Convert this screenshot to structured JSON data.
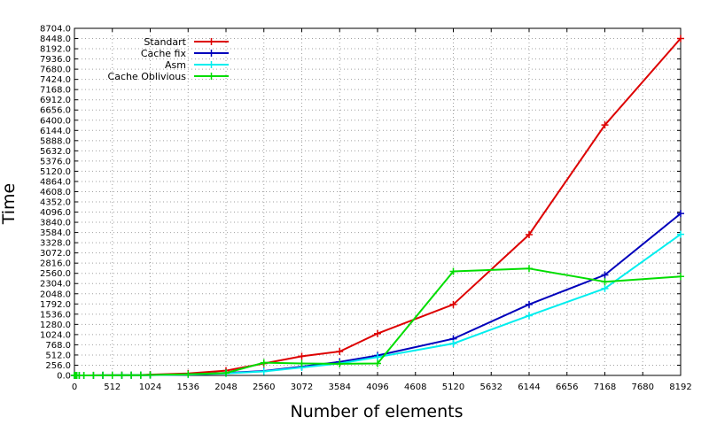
{
  "chart_data": {
    "type": "line",
    "title": "",
    "xlabel": "Number of elements",
    "ylabel": "Time",
    "xlim": [
      0,
      8192
    ],
    "ylim": [
      0,
      8704
    ],
    "grid": true,
    "legend_position": "top-left",
    "xticks": [
      0,
      512,
      1024,
      1536,
      2048,
      2560,
      3072,
      3584,
      4096,
      4608,
      5120,
      5632,
      6144,
      6656,
      7168,
      7680,
      8192
    ],
    "xtick_labels": [
      "0",
      "512",
      "1024",
      "1536",
      "2048",
      "2560",
      "3072",
      "3584",
      "4096",
      "4608",
      "5120",
      "5632",
      "6144",
      "6656",
      "7168",
      "7680",
      "8192"
    ],
    "yticks": [
      0,
      256,
      512,
      768,
      1024,
      1280,
      1536,
      1792,
      2048,
      2304,
      2560,
      2816,
      3072,
      3328,
      3584,
      3840,
      4096,
      4352,
      4608,
      4864,
      5120,
      5376,
      5632,
      5888,
      6144,
      6400,
      6656,
      6912,
      7168,
      7424,
      7680,
      7936,
      8192,
      8448,
      8704
    ],
    "ytick_labels": [
      "0.0",
      "256.0",
      "512.0",
      "768.0",
      "1024.0",
      "1280.0",
      "1536.0",
      "1792.0",
      "2048.0",
      "2304.0",
      "2560.0",
      "2816.0",
      "3072.0",
      "3328.0",
      "3584.0",
      "3840.0",
      "4096.0",
      "4352.0",
      "4608.0",
      "4864.0",
      "5120.0",
      "5376.0",
      "5632.0",
      "5888.0",
      "6144.0",
      "6400.0",
      "6656.0",
      "6912.0",
      "7168.0",
      "7424.0",
      "7680.0",
      "7936.0",
      "8192.0",
      "8448.0",
      "8704.0"
    ],
    "series": [
      {
        "name": "Standart",
        "color": "#dd0000",
        "x": [
          0,
          16,
          32,
          64,
          128,
          256,
          384,
          512,
          640,
          768,
          896,
          1024,
          1536,
          2048,
          2560,
          3072,
          3584,
          4096,
          5120,
          6144,
          7168,
          8192
        ],
        "y": [
          0,
          0,
          0,
          1,
          1,
          2,
          3,
          5,
          7,
          9,
          12,
          20,
          50,
          120,
          300,
          480,
          600,
          1050,
          1780,
          3530,
          6280,
          8450
        ]
      },
      {
        "name": "Cache fix",
        "color": "#0000bb",
        "x": [
          0,
          16,
          32,
          64,
          128,
          256,
          384,
          512,
          640,
          768,
          896,
          1024,
          1536,
          2048,
          2560,
          3072,
          3584,
          4096,
          5120,
          6144,
          7168,
          8192
        ],
        "y": [
          0,
          0,
          0,
          0,
          1,
          1,
          2,
          3,
          4,
          5,
          6,
          8,
          25,
          60,
          110,
          220,
          340,
          500,
          920,
          1780,
          2520,
          4060
        ]
      },
      {
        "name": "Asm",
        "color": "#00eeee",
        "x": [
          0,
          16,
          32,
          64,
          128,
          256,
          384,
          512,
          640,
          768,
          896,
          1024,
          1536,
          2048,
          2560,
          3072,
          3584,
          4096,
          5120,
          6144,
          7168,
          8192
        ],
        "y": [
          0,
          0,
          0,
          0,
          1,
          1,
          2,
          3,
          4,
          5,
          6,
          8,
          20,
          50,
          100,
          200,
          300,
          460,
          800,
          1500,
          2180,
          3540
        ]
      },
      {
        "name": "Cache Oblivious",
        "color": "#00dd00",
        "x": [
          0,
          16,
          32,
          64,
          128,
          256,
          384,
          512,
          640,
          768,
          896,
          1024,
          1536,
          2048,
          2560,
          3072,
          3584,
          4096,
          5120,
          6144,
          7168,
          8192
        ],
        "y": [
          0,
          0,
          0,
          0,
          1,
          1,
          2,
          3,
          4,
          5,
          6,
          10,
          30,
          60,
          320,
          300,
          290,
          300,
          2610,
          2680,
          2350,
          2480
        ]
      }
    ]
  }
}
